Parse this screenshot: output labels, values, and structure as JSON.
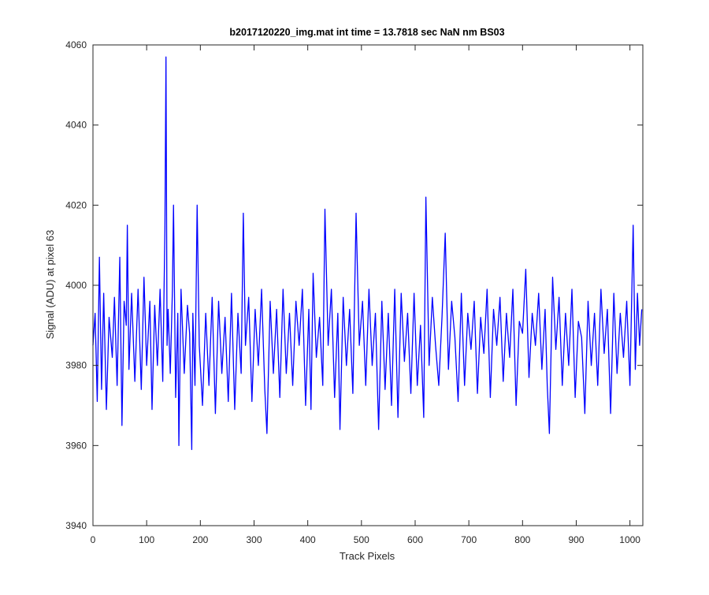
{
  "chart_data": {
    "type": "line",
    "title": "b2017120220_img.mat int time = 13.7818 sec  NaN nm BS03",
    "xlabel": "Track Pixels",
    "ylabel": "Signal (ADU) at pixel 63",
    "xlim": [
      0,
      1024
    ],
    "ylim": [
      3940,
      4060
    ],
    "xticks": [
      0,
      100,
      200,
      300,
      400,
      500,
      600,
      700,
      800,
      900,
      1000
    ],
    "yticks": [
      3940,
      3960,
      3980,
      4000,
      4020,
      4040,
      4060
    ],
    "grid": false,
    "line_color": "#0000ff",
    "series": [
      {
        "x": [
          0,
          4,
          8,
          12,
          16,
          20,
          25,
          30,
          36,
          40,
          45,
          50,
          54,
          58,
          62,
          64,
          67,
          72,
          78,
          84,
          90,
          95,
          100,
          106,
          110,
          115,
          120,
          125,
          130,
          134,
          136,
          138,
          140,
          144,
          148,
          150,
          154,
          158,
          160,
          164,
          170,
          176,
          180,
          184,
          186,
          190,
          194,
          198,
          204,
          210,
          216,
          222,
          228,
          234,
          240,
          246,
          252,
          258,
          264,
          270,
          276,
          280,
          284,
          290,
          296,
          302,
          308,
          314,
          320,
          324,
          330,
          336,
          342,
          348,
          354,
          360,
          366,
          372,
          378,
          384,
          390,
          396,
          402,
          406,
          410,
          416,
          422,
          428,
          432,
          438,
          444,
          450,
          456,
          460,
          466,
          472,
          478,
          484,
          490,
          496,
          502,
          508,
          514,
          520,
          526,
          532,
          538,
          544,
          550,
          556,
          562,
          568,
          574,
          580,
          586,
          592,
          598,
          604,
          610,
          616,
          620,
          626,
          632,
          638,
          644,
          650,
          656,
          662,
          668,
          674,
          680,
          686,
          692,
          698,
          704,
          710,
          716,
          722,
          728,
          734,
          740,
          746,
          752,
          758,
          764,
          770,
          776,
          782,
          788,
          794,
          800,
          806,
          812,
          818,
          824,
          830,
          836,
          842,
          846,
          850,
          856,
          862,
          868,
          874,
          880,
          886,
          892,
          898,
          904,
          910,
          916,
          922,
          928,
          934,
          940,
          946,
          952,
          958,
          964,
          970,
          976,
          982,
          988,
          994,
          1000,
          1006,
          1010,
          1014,
          1018,
          1022
        ],
        "values": [
          3985,
          3993,
          3971,
          4007,
          3974,
          3998,
          3969,
          3992,
          3982,
          3997,
          3975,
          4007,
          3965,
          3996,
          3990,
          4015,
          3979,
          3998,
          3976,
          3999,
          3974,
          4002,
          3980,
          3996,
          3969,
          3995,
          3980,
          3999,
          3976,
          4014,
          4057,
          3985,
          3994,
          3978,
          3999,
          4020,
          3972,
          3993,
          3960,
          3999,
          3978,
          3995,
          3988,
          3959,
          3993,
          3975,
          4020,
          3985,
          3970,
          3993,
          3975,
          3997,
          3968,
          3996,
          3978,
          3992,
          3971,
          3998,
          3969,
          3993,
          3978,
          4018,
          3985,
          3997,
          3971,
          3994,
          3980,
          3999,
          3974,
          3963,
          3996,
          3978,
          3994,
          3972,
          3999,
          3978,
          3993,
          3975,
          3996,
          3985,
          3999,
          3970,
          3994,
          3969,
          4003,
          3982,
          3992,
          3975,
          4019,
          3985,
          3999,
          3972,
          3993,
          3964,
          3997,
          3980,
          3994,
          3973,
          4018,
          3985,
          3996,
          3975,
          3999,
          3980,
          3993,
          3964,
          3996,
          3974,
          3993,
          3970,
          3999,
          3967,
          3998,
          3981,
          3993,
          3973,
          3998,
          3975,
          3990,
          3967,
          4022,
          3980,
          3997,
          3985,
          3975,
          3992,
          4013,
          3979,
          3996,
          3987,
          3971,
          3998,
          3975,
          3993,
          3984,
          3996,
          3973,
          3992,
          3983,
          3999,
          3972,
          3994,
          3985,
          3997,
          3976,
          3993,
          3982,
          3999,
          3970,
          3991,
          3988,
          4004,
          3977,
          3993,
          3985,
          3998,
          3979,
          3994,
          3975,
          3963,
          4002,
          3984,
          3997,
          3975,
          3993,
          3980,
          3999,
          3972,
          3991,
          3987,
          3968,
          3996,
          3980,
          3993,
          3975,
          3999,
          3983,
          3994,
          3968,
          3998,
          3978,
          3993,
          3982,
          3996,
          3975,
          4015,
          3979,
          3998,
          3985,
          3994
        ]
      }
    ]
  }
}
